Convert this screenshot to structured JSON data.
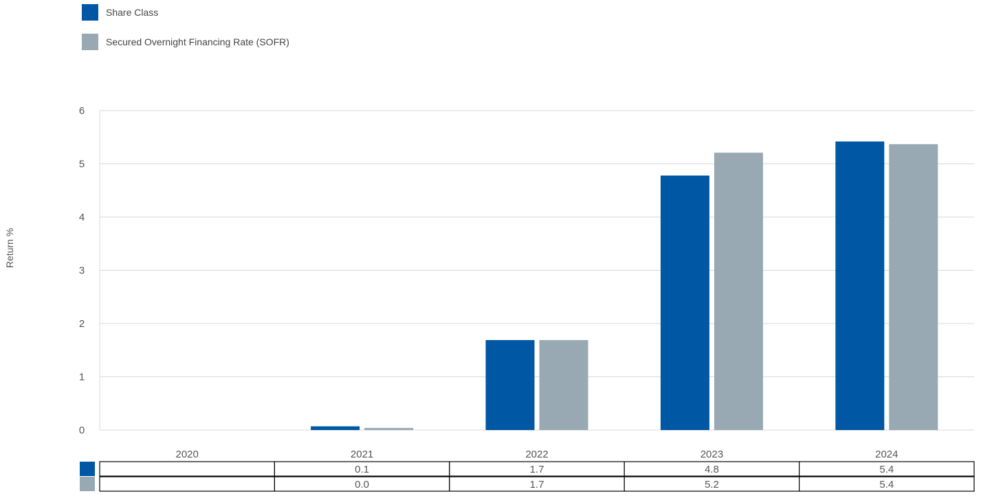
{
  "chart_data": {
    "type": "bar",
    "ylabel": "Return %",
    "ylim": [
      0,
      6
    ],
    "yticks": [
      0,
      1,
      2,
      3,
      4,
      5,
      6
    ],
    "categories": [
      "2020",
      "2021",
      "2022",
      "2023",
      "2024"
    ],
    "grid": true,
    "legend_position": "top-left",
    "series": [
      {
        "name": "Share Class",
        "color": "#0057a4",
        "values": [
          null,
          0.07,
          1.69,
          4.78,
          5.42
        ],
        "table_values": [
          "",
          "0.1",
          "1.7",
          "4.8",
          "5.4"
        ]
      },
      {
        "name": "Secured Overnight Financing Rate (SOFR)",
        "color": "#99a9b4",
        "values": [
          null,
          0.04,
          1.69,
          5.21,
          5.37
        ],
        "table_values": [
          "",
          "0.0",
          "1.7",
          "5.2",
          "5.4"
        ]
      }
    ]
  }
}
